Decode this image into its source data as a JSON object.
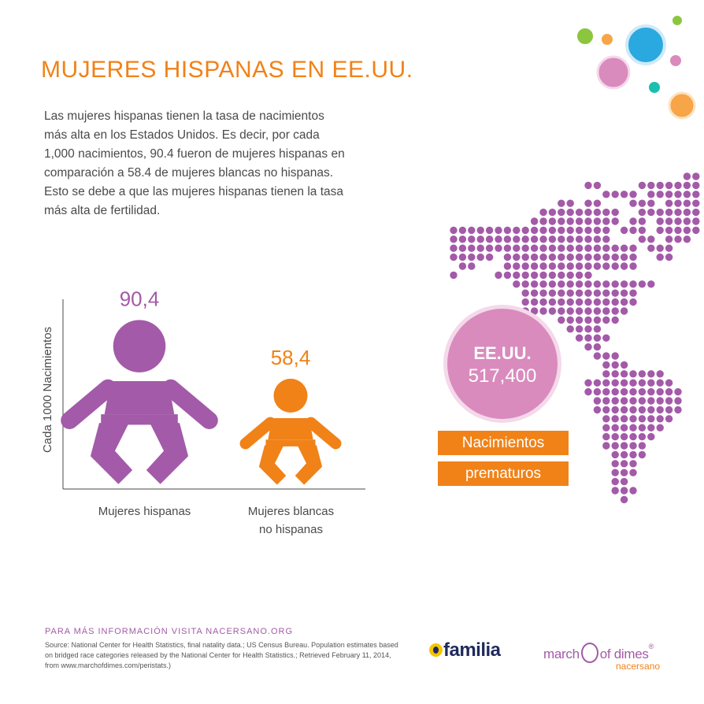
{
  "title": "MUJERES HISPANAS EN EE.UU.",
  "body": "Las mujeres hispanas tienen la tasa de nacimientos\nmás alta en los Estados Unidos. Es decir, por cada\n1,000 nacimientos, 90.4 fueron de mujeres hispanas en\ncomparación a 58.4 de mujeres blancas no hispanas.\nEsto se debe a que las mujeres hispanas tienen la tasa\nmás alta de fertilidad.",
  "colors": {
    "orange": "#f08218",
    "purple": "#a35aa8",
    "pink": "#d98bbd",
    "map_dot": "#a35aa8"
  },
  "chart_data": {
    "type": "bar",
    "title": "",
    "xlabel": "",
    "ylabel": "Cada 1000 Nacimientos",
    "categories": [
      "Mujeres hispanas",
      "Mujeres blancas\nno hispanas"
    ],
    "values": [
      90.4,
      58.4
    ],
    "value_labels": [
      "90,4",
      "58,4"
    ],
    "bar_colors": [
      "#a35aa8",
      "#f08218"
    ],
    "mark_style": "baby-icon",
    "ylim": [
      0,
      100
    ],
    "grid": false,
    "legend": "none"
  },
  "map": {
    "region": "EE.UU.",
    "value": "517,400",
    "tags": [
      "Nacimientos",
      "prematuros"
    ]
  },
  "decor_icon": "colored-bubbles",
  "footer": {
    "more_info": "PARA MÁS INFORMACIÓN VISITA NACERSANO.ORG",
    "source": "Source: National Center for Health Statistics, final natality data.; US Census Bureau. Population estimates based on bridged race categories released by the National Center for Health Statistics.; Retrieved February 11, 2014, from www.marchofdimes.com/peristats.)"
  },
  "logos": {
    "familia": "familia",
    "march_left": "march",
    "march_right": "of dimes",
    "march_reg": "®",
    "nacersano": "nacersano"
  }
}
